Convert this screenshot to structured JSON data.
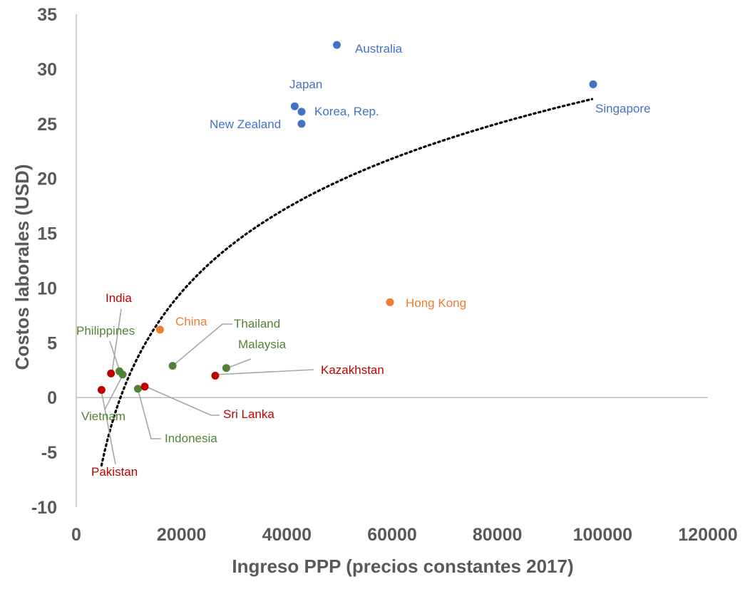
{
  "chart_data": {
    "type": "scatter",
    "title": "",
    "xlabel": "Ingreso PPP (precios constantes 2017)",
    "ylabel": "Costos laborales (USD)",
    "xlim": [
      0,
      120000
    ],
    "ylim": [
      -10,
      35
    ],
    "x_ticks": [
      "0",
      "20000",
      "40000",
      "60000",
      "80000",
      "100000",
      "120000"
    ],
    "y_ticks": [
      "35",
      "30",
      "25",
      "20",
      "15",
      "10",
      "5",
      "0",
      "-5",
      "-10"
    ],
    "grid": false,
    "legend": "none",
    "colors": {
      "high_income": "#4472c4",
      "east_asia_other": "#ed7d31",
      "southeast_asia": "#548235",
      "south_central_asia": "#c00000",
      "trendline": "#000000"
    },
    "trendline": {
      "type": "logarithmic",
      "x_start": 4800,
      "x_end": 98000
    },
    "points": [
      {
        "label": "Australia",
        "x": 49500,
        "y": 32.2,
        "group": "high_income"
      },
      {
        "label": "Japan",
        "x": 41500,
        "y": 26.6,
        "group": "high_income"
      },
      {
        "label": "Korea, Rep.",
        "x": 42800,
        "y": 26.1,
        "group": "high_income"
      },
      {
        "label": "New Zealand",
        "x": 42800,
        "y": 25.0,
        "group": "high_income"
      },
      {
        "label": "Singapore",
        "x": 98200,
        "y": 28.6,
        "group": "high_income"
      },
      {
        "label": "Hong Kong",
        "x": 59600,
        "y": 8.7,
        "group": "east_asia_other"
      },
      {
        "label": "China",
        "x": 15900,
        "y": 6.2,
        "group": "east_asia_other"
      },
      {
        "label": "Thailand",
        "x": 18300,
        "y": 2.9,
        "group": "southeast_asia"
      },
      {
        "label": "Malaysia",
        "x": 28500,
        "y": 2.7,
        "group": "southeast_asia"
      },
      {
        "label": "Philippines",
        "x": 8200,
        "y": 2.4,
        "group": "southeast_asia"
      },
      {
        "label": "Vietnam",
        "x": 8800,
        "y": 2.1,
        "group": "southeast_asia"
      },
      {
        "label": "Indonesia",
        "x": 11700,
        "y": 0.8,
        "group": "southeast_asia"
      },
      {
        "label": "Kazakhstan",
        "x": 26400,
        "y": 2.0,
        "group": "south_central_asia"
      },
      {
        "label": "India",
        "x": 6600,
        "y": 2.2,
        "group": "south_central_asia"
      },
      {
        "label": "Sri Lanka",
        "x": 13000,
        "y": 1.0,
        "group": "south_central_asia"
      },
      {
        "label": "Pakistan",
        "x": 4800,
        "y": 0.7,
        "group": "south_central_asia"
      }
    ]
  }
}
